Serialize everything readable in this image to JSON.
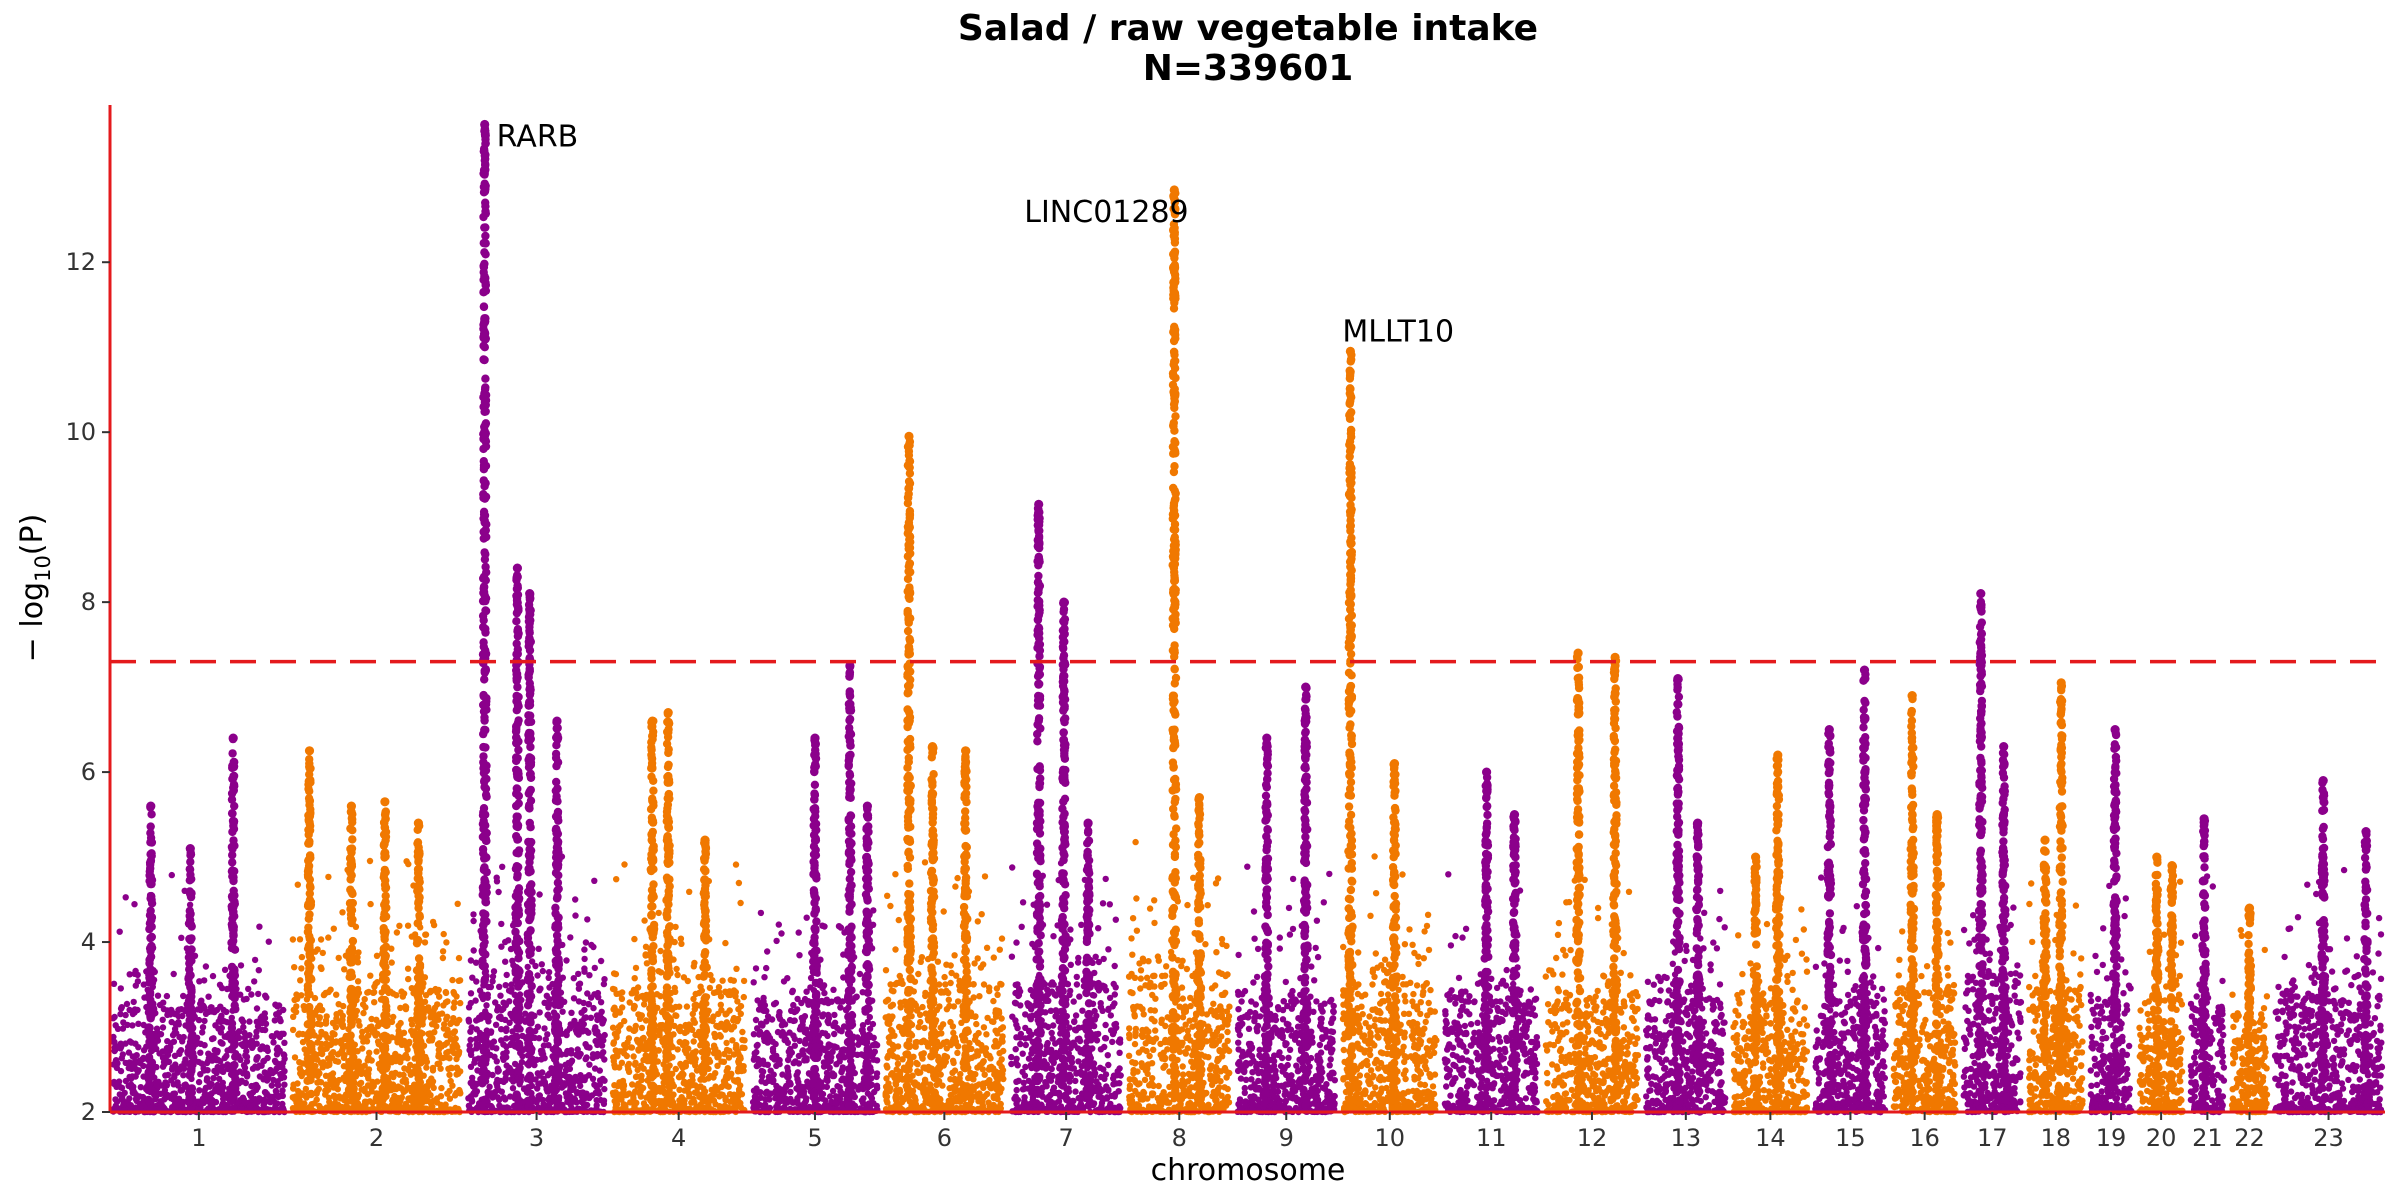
{
  "chart_data": {
    "type": "scatter",
    "title": "Salad / raw vegetable intake",
    "subtitle": "N=339601",
    "xlabel": "chromosome",
    "ylabel_main": "− log",
    "ylabel_sub": "10",
    "ylabel_tail": "(P)",
    "ylim": [
      2,
      13.85
    ],
    "yticks": [
      2,
      4,
      6,
      8,
      10,
      12
    ],
    "significance_line": 7.3,
    "colors": {
      "odd": "#8b008b",
      "even": "#f07800",
      "axis": "#e41a1c",
      "threshold": "#e41a1c"
    },
    "grid": false,
    "legend": "none",
    "chromosomes": [
      {
        "label": "1",
        "bg": 3.2,
        "peaks": [
          [
            0.7,
            6.4,
            0.01
          ],
          [
            0.22,
            5.6,
            0.012
          ],
          [
            0.45,
            5.1,
            0.012
          ]
        ]
      },
      {
        "label": "2",
        "bg": 3.4,
        "peaks": [
          [
            0.1,
            6.25,
            0.01
          ],
          [
            0.35,
            5.6,
            0.012
          ],
          [
            0.55,
            5.65,
            0.012
          ],
          [
            0.75,
            5.4,
            0.012
          ]
        ]
      },
      {
        "label": "3",
        "bg": 3.5,
        "peaks": [
          [
            0.12,
            13.62,
            0.006
          ],
          [
            0.36,
            8.4,
            0.006
          ],
          [
            0.45,
            8.1,
            0.006
          ],
          [
            0.65,
            6.6,
            0.01
          ]
        ]
      },
      {
        "label": "4",
        "bg": 3.4,
        "peaks": [
          [
            0.3,
            6.6,
            0.01
          ],
          [
            0.42,
            6.7,
            0.01
          ],
          [
            0.7,
            5.2,
            0.012
          ]
        ]
      },
      {
        "label": "5",
        "bg": 3.3,
        "peaks": [
          [
            0.5,
            6.4,
            0.01
          ],
          [
            0.78,
            7.25,
            0.008
          ],
          [
            0.92,
            5.6,
            0.012
          ]
        ]
      },
      {
        "label": "6",
        "bg": 3.5,
        "peaks": [
          [
            0.2,
            9.95,
            0.008
          ],
          [
            0.4,
            6.3,
            0.01
          ],
          [
            0.68,
            6.25,
            0.01
          ]
        ]
      },
      {
        "label": "7",
        "bg": 3.5,
        "peaks": [
          [
            0.25,
            9.15,
            0.006
          ],
          [
            0.48,
            8.0,
            0.006
          ],
          [
            0.7,
            5.4,
            0.012
          ]
        ]
      },
      {
        "label": "8",
        "bg": 3.6,
        "peaks": [
          [
            0.45,
            12.85,
            0.007
          ],
          [
            0.7,
            5.7,
            0.012
          ]
        ]
      },
      {
        "label": "9",
        "bg": 3.3,
        "peaks": [
          [
            0.3,
            6.4,
            0.01
          ],
          [
            0.7,
            7.0,
            0.008
          ]
        ]
      },
      {
        "label": "10",
        "bg": 3.5,
        "peaks": [
          [
            0.08,
            10.95,
            0.008
          ],
          [
            0.55,
            6.1,
            0.01
          ]
        ]
      },
      {
        "label": "11",
        "bg": 3.3,
        "peaks": [
          [
            0.45,
            6.0,
            0.01
          ],
          [
            0.75,
            5.5,
            0.012
          ]
        ]
      },
      {
        "label": "12",
        "bg": 3.3,
        "peaks": [
          [
            0.35,
            7.4,
            0.008
          ],
          [
            0.75,
            7.35,
            0.008
          ]
        ]
      },
      {
        "label": "13",
        "bg": 3.3,
        "peaks": [
          [
            0.4,
            7.1,
            0.008
          ],
          [
            0.65,
            5.4,
            0.012
          ]
        ]
      },
      {
        "label": "14",
        "bg": 3.3,
        "peaks": [
          [
            0.6,
            6.2,
            0.01
          ],
          [
            0.3,
            5.0,
            0.012
          ]
        ]
      },
      {
        "label": "15",
        "bg": 3.3,
        "peaks": [
          [
            0.2,
            6.5,
            0.01
          ],
          [
            0.7,
            7.2,
            0.008
          ]
        ]
      },
      {
        "label": "16",
        "bg": 3.4,
        "peaks": [
          [
            0.3,
            6.9,
            0.008
          ],
          [
            0.7,
            5.5,
            0.012
          ]
        ]
      },
      {
        "label": "17",
        "bg": 3.6,
        "peaks": [
          [
            0.3,
            8.1,
            0.007
          ],
          [
            0.7,
            6.3,
            0.01
          ]
        ]
      },
      {
        "label": "18",
        "bg": 3.4,
        "peaks": [
          [
            0.6,
            7.05,
            0.008
          ],
          [
            0.3,
            5.2,
            0.012
          ]
        ]
      },
      {
        "label": "19",
        "bg": 3.2,
        "peaks": [
          [
            0.6,
            6.5,
            0.01
          ]
        ]
      },
      {
        "label": "20",
        "bg": 3.3,
        "peaks": [
          [
            0.4,
            5.0,
            0.012
          ],
          [
            0.75,
            4.9,
            0.012
          ]
        ]
      },
      {
        "label": "21",
        "bg": 3.2,
        "peaks": [
          [
            0.4,
            5.45,
            0.012
          ]
        ]
      },
      {
        "label": "22",
        "bg": 3.1,
        "peaks": [
          [
            0.5,
            4.4,
            0.012
          ]
        ]
      },
      {
        "label": "23",
        "bg": 3.3,
        "peaks": [
          [
            0.45,
            5.9,
            0.01
          ],
          [
            0.85,
            5.3,
            0.012
          ]
        ]
      }
    ],
    "annotations": [
      {
        "label": "RARB",
        "chrom": "3",
        "pos": 0.12,
        "y": 13.62
      },
      {
        "label": "LINC01289",
        "chrom": "8",
        "pos": 0.45,
        "y": 12.85
      },
      {
        "label": "MLLT10",
        "chrom": "10",
        "pos": 0.08,
        "y": 10.95
      }
    ]
  }
}
